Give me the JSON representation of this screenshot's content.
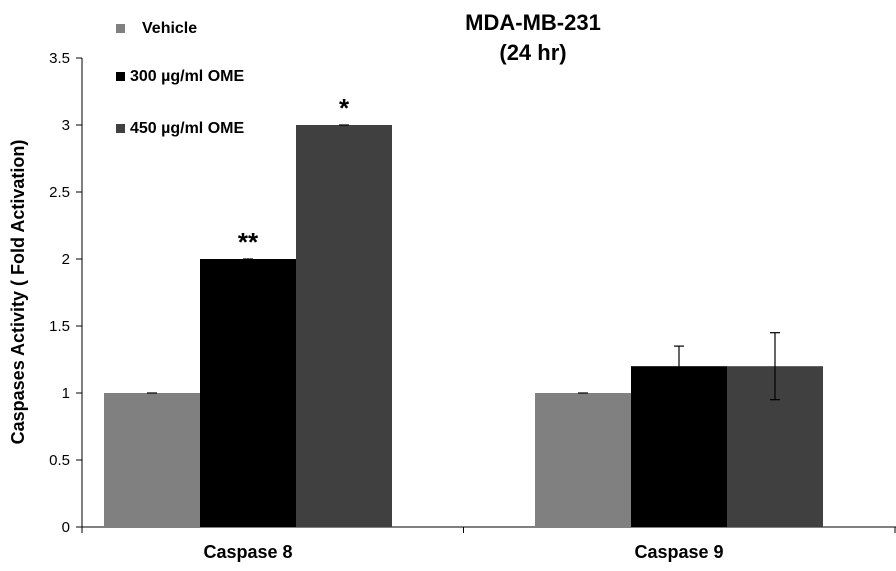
{
  "chart_data": {
    "type": "bar",
    "title": "MDA-MB-231",
    "subtitle": "(24 hr)",
    "ylabel": "Caspases Activity  ( Fold Activation)",
    "xlabel": "",
    "ylim": [
      0,
      3.5
    ],
    "yticks": [
      0,
      0.5,
      1,
      1.5,
      2,
      2.5,
      3,
      3.5
    ],
    "ytick_labels": [
      "0",
      "0.5",
      "1",
      "1.5",
      "2",
      "2.5",
      "3",
      "3.5"
    ],
    "categories": [
      "Caspase 8",
      "Caspase 9"
    ],
    "series": [
      {
        "name": "Vehicle",
        "values": [
          1.0,
          1.0
        ],
        "errors": [
          0.0,
          0.0
        ],
        "color": "#808080"
      },
      {
        "name": "300 µg/ml OME",
        "values": [
          2.0,
          1.2
        ],
        "errors": [
          0.0,
          0.15
        ],
        "color": "#000000"
      },
      {
        "name": "450 µg/ml OME",
        "values": [
          3.0,
          1.2
        ],
        "errors": [
          0.0,
          0.25
        ],
        "color": "#404040"
      }
    ],
    "annotations": [
      {
        "category": "Caspase 8",
        "series": "300 µg/ml OME",
        "text": "**"
      },
      {
        "category": "Caspase 8",
        "series": "450 µg/ml OME",
        "text": "*"
      }
    ],
    "legend_position": "top-left",
    "grid": false
  }
}
